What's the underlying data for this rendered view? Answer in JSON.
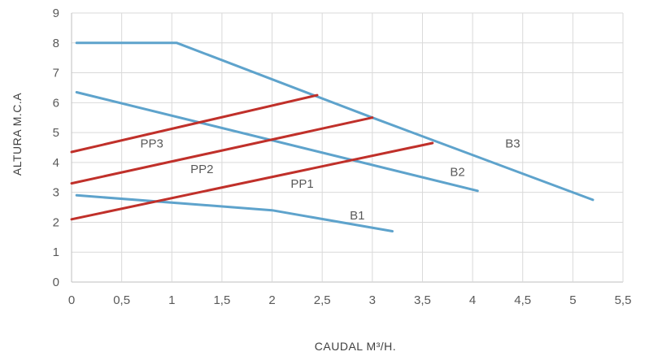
{
  "chart_data": {
    "type": "line",
    "xlabel": "CAUDAL M³/H.",
    "ylabel": "ALTURA M.C.A",
    "xlim": [
      0,
      5.5
    ],
    "ylim": [
      0,
      9
    ],
    "x_ticks": [
      "0",
      "0,5",
      "1",
      "1,5",
      "2",
      "2,5",
      "3",
      "3,5",
      "4",
      "4,5",
      "5",
      "5,5"
    ],
    "y_ticks": [
      "0",
      "1",
      "2",
      "3",
      "4",
      "5",
      "6",
      "7",
      "8",
      "9"
    ],
    "grid": true,
    "colors": {
      "pump_curve": "#5ea3cc",
      "system_curve": "#c0302a",
      "grid": "#d9d9d9",
      "text": "#595959"
    },
    "series": [
      {
        "name": "B3",
        "kind": "pump_curve",
        "points": [
          [
            0.05,
            8.0
          ],
          [
            1.05,
            8.0
          ],
          [
            3.0,
            5.5
          ],
          [
            5.2,
            2.75
          ]
        ],
        "label_at": [
          4.4,
          4.5
        ]
      },
      {
        "name": "B2",
        "kind": "pump_curve",
        "points": [
          [
            0.05,
            6.35
          ],
          [
            4.05,
            3.05
          ]
        ],
        "label_at": [
          3.85,
          3.55
        ]
      },
      {
        "name": "B1",
        "kind": "pump_curve",
        "points": [
          [
            0.05,
            2.9
          ],
          [
            2.0,
            2.4
          ],
          [
            3.2,
            1.7
          ]
        ],
        "label_at": [
          2.85,
          2.1
        ]
      },
      {
        "name": "PP3",
        "kind": "system_curve",
        "points": [
          [
            0.0,
            4.35
          ],
          [
            2.45,
            6.25
          ]
        ],
        "label_at": [
          0.8,
          4.5
        ]
      },
      {
        "name": "PP2",
        "kind": "system_curve",
        "points": [
          [
            0.0,
            3.3
          ],
          [
            3.0,
            5.5
          ]
        ],
        "label_at": [
          1.3,
          3.65
        ]
      },
      {
        "name": "PP1",
        "kind": "system_curve",
        "points": [
          [
            0.0,
            2.1
          ],
          [
            3.6,
            4.65
          ]
        ],
        "label_at": [
          2.3,
          3.15
        ]
      }
    ]
  }
}
